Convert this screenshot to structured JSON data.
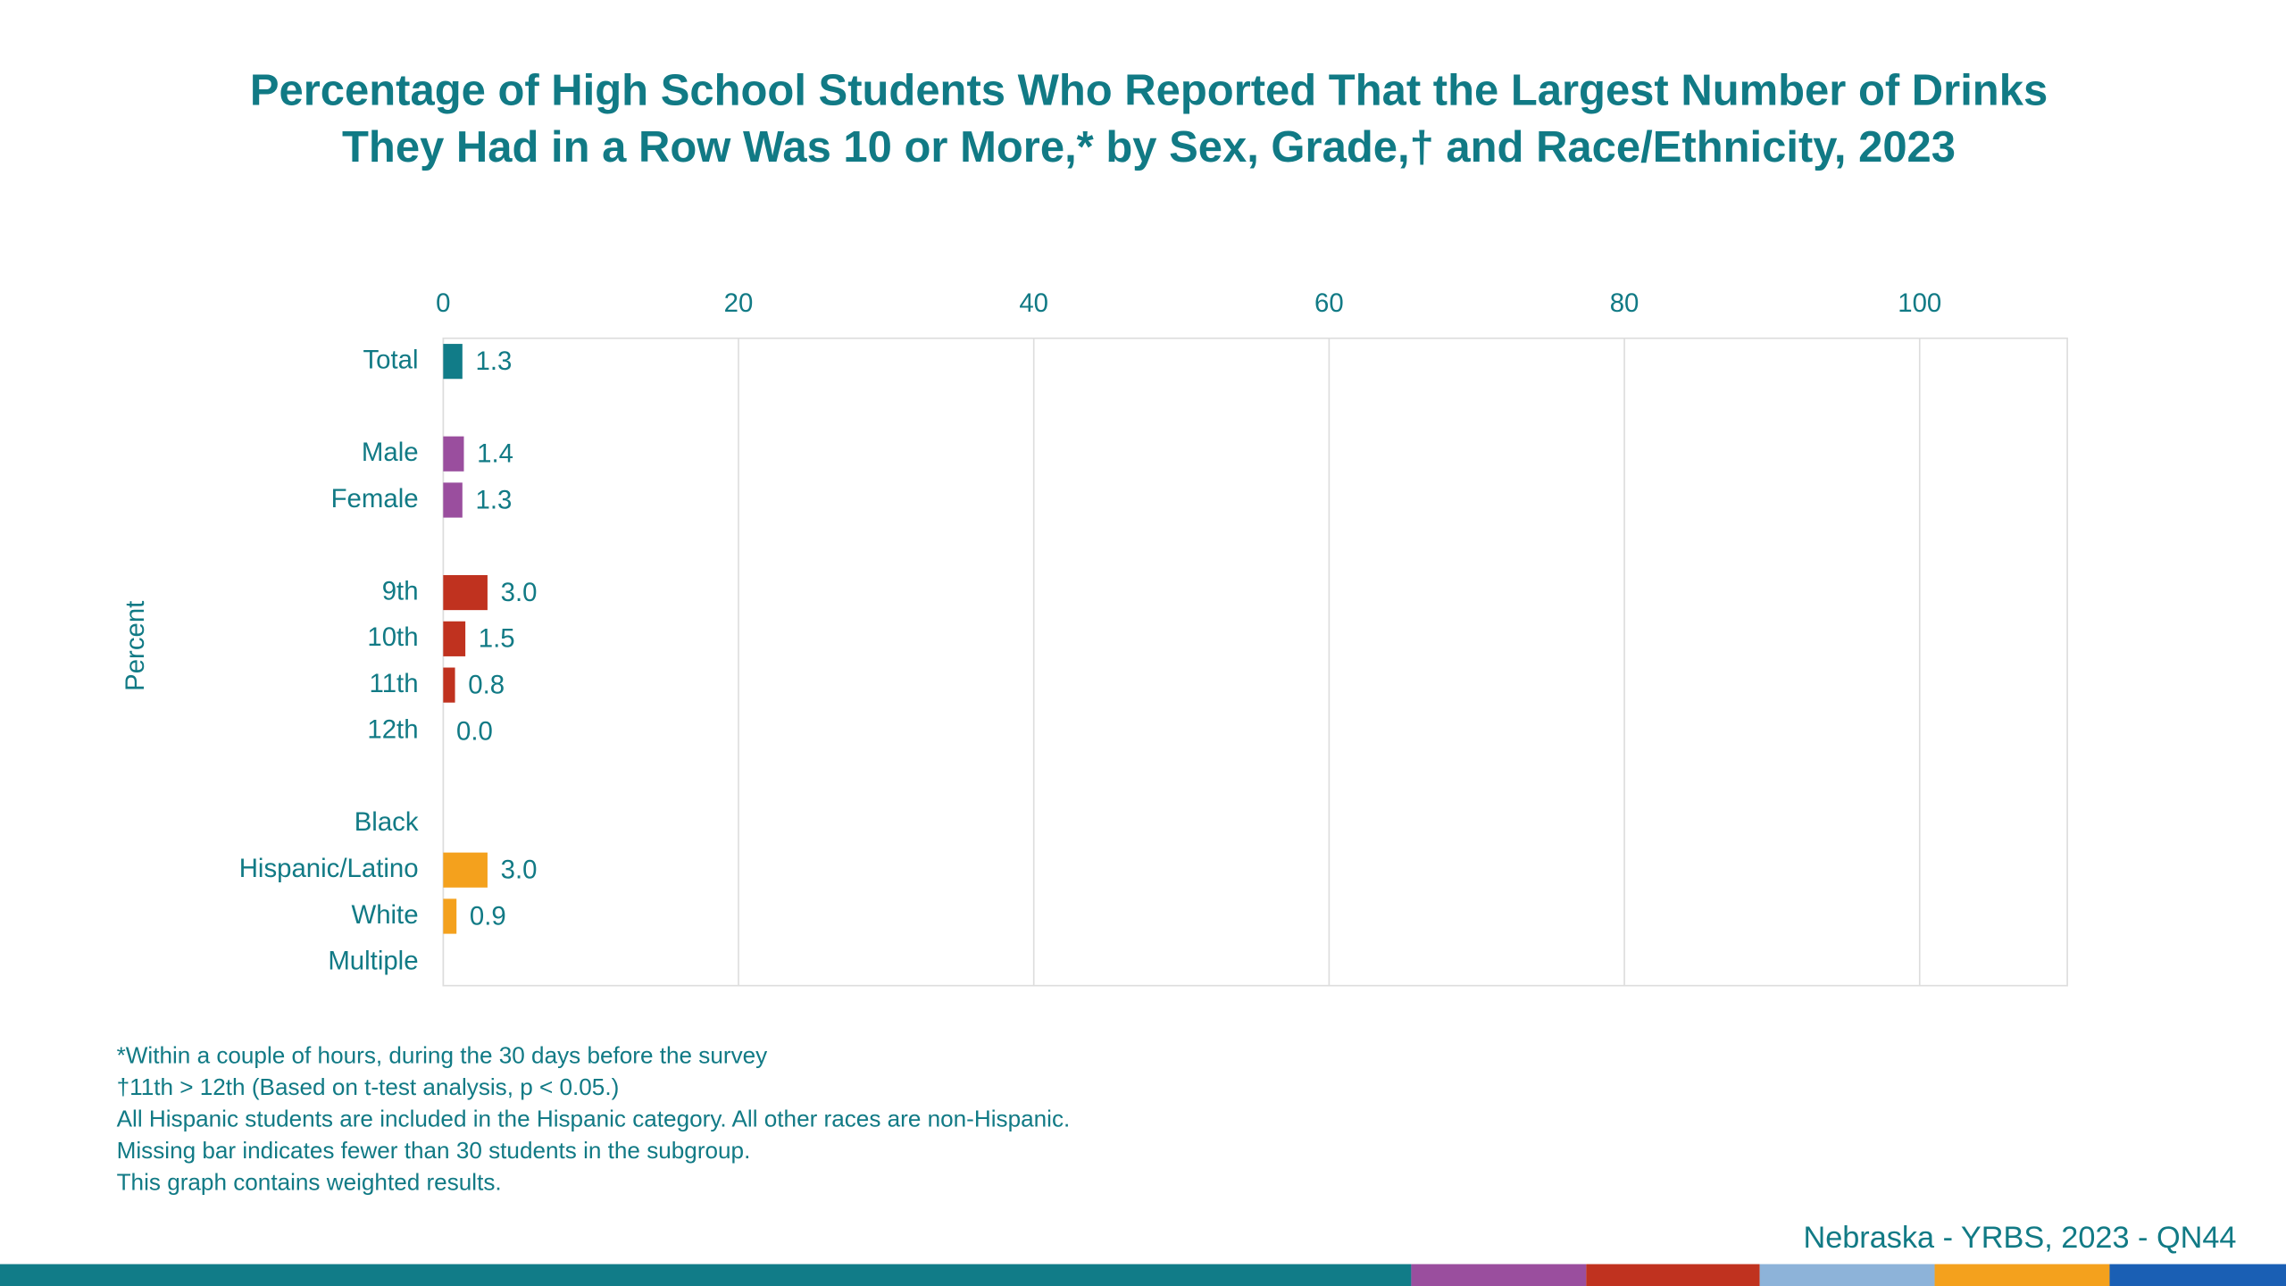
{
  "chart_data": {
    "type": "hbar",
    "title": [
      "Percentage of High School Students Who Reported That the Largest Number of Drinks",
      "They Had in a Row Was 10 or More,* by Sex, Grade,† and Race/Ethnicity, 2023"
    ],
    "y_label": "Percent",
    "categories": [
      "Total",
      null,
      "Male",
      "Female",
      null,
      "9th",
      "10th",
      "11th",
      "12th",
      null,
      "Black",
      "Hispanic/Latino",
      "White",
      "Multiple"
    ],
    "values": [
      1.3,
      null,
      1.4,
      1.3,
      null,
      3.0,
      1.5,
      0.8,
      0.0,
      null,
      null,
      3.0,
      0.9,
      null
    ],
    "value_labels": [
      "1.3",
      null,
      "1.4",
      "1.3",
      null,
      "3.0",
      "1.5",
      "0.8",
      "0.0",
      null,
      null,
      "3.0",
      "0.9",
      null
    ],
    "colors": [
      "#117c88",
      null,
      "#9a4e9e",
      "#9a4e9e",
      null,
      "#c0321f",
      "#c0321f",
      "#c0321f",
      "#c0321f",
      null,
      "#f4a11d",
      "#f4a11d",
      "#f4a11d",
      "#f4a11d"
    ],
    "xlim": [
      0,
      110
    ],
    "xticks": [
      0,
      20,
      40,
      60,
      80,
      100
    ],
    "grid": true,
    "footnotes": [
      "*Within a couple of hours, during the 30 days before the survey",
      "†11th > 12th (Based on t-test analysis, p < 0.05.)",
      "All Hispanic students are included in the Hispanic category.  All other races are non-Hispanic.",
      "Missing bar indicates fewer than 30 students in the subgroup.",
      "This graph contains weighted results."
    ],
    "source": "Nebraska - YRBS, 2023 - QN44"
  }
}
